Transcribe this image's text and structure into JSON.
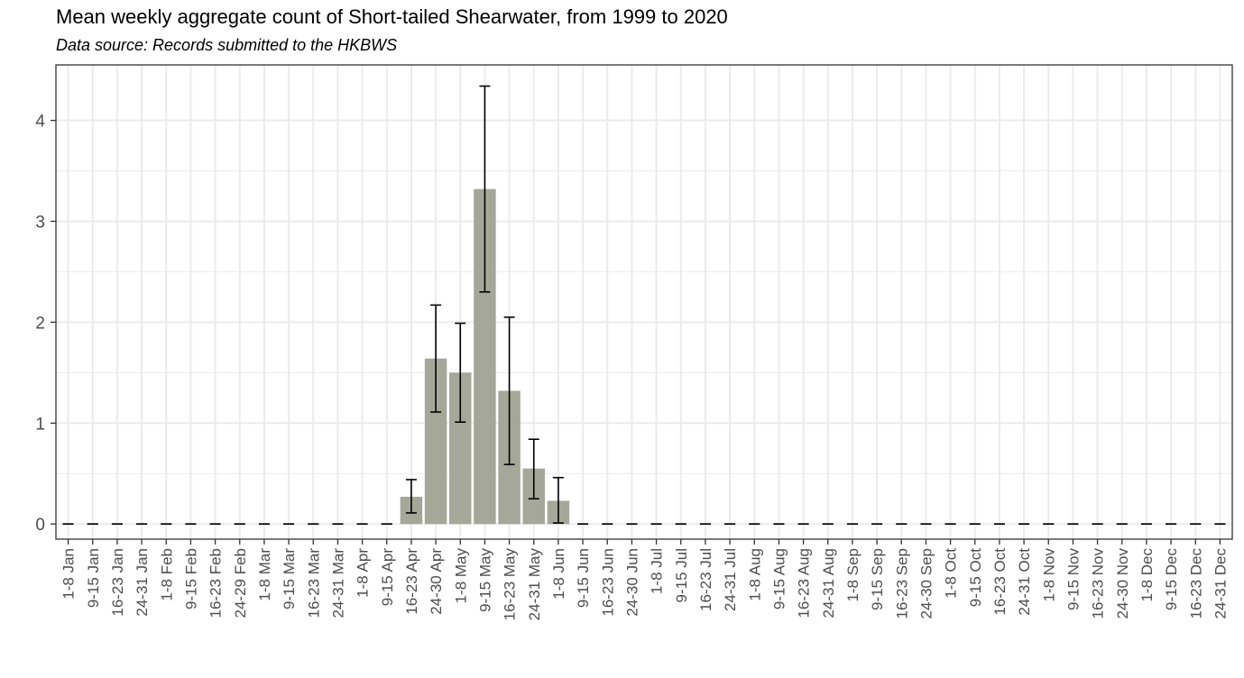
{
  "title": "Mean weekly aggregate count of Short-tailed Shearwater, from 1999 to 2020",
  "subtitle": "Data source: Records submitted to the HKBWS",
  "colors": {
    "bar": "#a5a799",
    "grid": "#ebebeb",
    "border": "#333333",
    "errorbar": "#000000",
    "text": "#4d4d4d"
  },
  "chart_data": {
    "type": "bar",
    "categories": [
      "1-8 Jan",
      "9-15 Jan",
      "16-23 Jan",
      "24-31 Jan",
      "1-8 Feb",
      "9-15 Feb",
      "16-23 Feb",
      "24-29 Feb",
      "1-8 Mar",
      "9-15 Mar",
      "16-23 Mar",
      "24-31 Mar",
      "1-8 Apr",
      "9-15 Apr",
      "16-23 Apr",
      "24-30 Apr",
      "1-8 May",
      "9-15 May",
      "16-23 May",
      "24-31 May",
      "1-8 Jun",
      "9-15 Jun",
      "16-23 Jun",
      "24-30 Jun",
      "1-8 Jul",
      "9-15 Jul",
      "16-23 Jul",
      "24-31 Jul",
      "1-8 Aug",
      "9-15 Aug",
      "16-23 Aug",
      "24-31 Aug",
      "1-8 Sep",
      "9-15 Sep",
      "16-23 Sep",
      "24-30 Sep",
      "1-8 Oct",
      "9-15 Oct",
      "16-23 Oct",
      "24-31 Oct",
      "1-8 Nov",
      "9-15 Nov",
      "16-23 Nov",
      "24-30 Nov",
      "1-8 Dec",
      "9-15 Dec",
      "16-23 Dec",
      "24-31 Dec"
    ],
    "values": [
      0,
      0,
      0,
      0,
      0,
      0,
      0,
      0,
      0,
      0,
      0,
      0,
      0,
      0,
      0.27,
      1.64,
      1.5,
      3.32,
      1.32,
      0.55,
      0.23,
      0,
      0,
      0,
      0,
      0,
      0,
      0,
      0,
      0,
      0,
      0,
      0,
      0,
      0,
      0,
      0,
      0,
      0,
      0,
      0,
      0,
      0,
      0,
      0,
      0,
      0,
      0
    ],
    "error_low": [
      0,
      0,
      0,
      0,
      0,
      0,
      0,
      0,
      0,
      0,
      0,
      0,
      0,
      0,
      0.11,
      1.11,
      1.01,
      2.3,
      0.59,
      0.25,
      0.01,
      0,
      0,
      0,
      0,
      0,
      0,
      0,
      0,
      0,
      0,
      0,
      0,
      0,
      0,
      0,
      0,
      0,
      0,
      0,
      0,
      0,
      0,
      0,
      0,
      0,
      0,
      0
    ],
    "error_high": [
      0,
      0,
      0,
      0,
      0,
      0,
      0,
      0,
      0,
      0,
      0,
      0,
      0,
      0,
      0.44,
      2.17,
      1.99,
      4.34,
      2.05,
      0.84,
      0.46,
      0,
      0,
      0,
      0,
      0,
      0,
      0,
      0,
      0,
      0,
      0,
      0,
      0,
      0,
      0,
      0,
      0,
      0,
      0,
      0,
      0,
      0,
      0,
      0,
      0,
      0,
      0
    ],
    "yticks": [
      0,
      1,
      2,
      3,
      4
    ],
    "ylim": [
      -0.15,
      4.55
    ],
    "grid": true,
    "xlabel": "",
    "ylabel": ""
  }
}
